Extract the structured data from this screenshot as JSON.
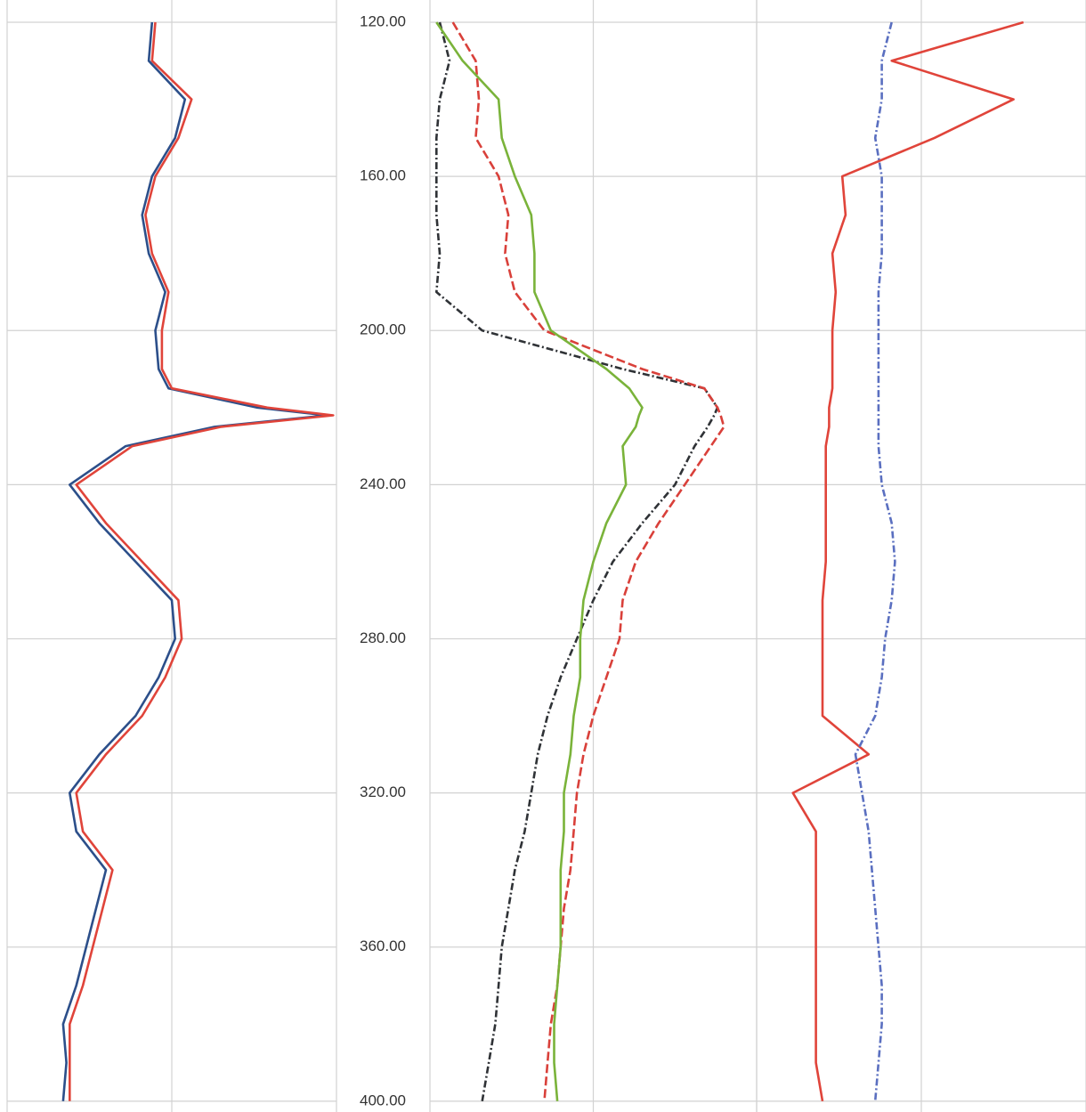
{
  "chart_data": {
    "type": "line",
    "y": [
      120,
      130,
      140,
      150,
      160,
      170,
      180,
      190,
      200,
      210,
      215,
      220,
      222,
      225,
      230,
      240,
      250,
      260,
      270,
      280,
      290,
      300,
      310,
      320,
      330,
      340,
      350,
      360,
      370,
      380,
      390,
      400
    ],
    "ylim": [
      116,
      402
    ],
    "yticks": [
      {
        "value": 120,
        "label": "120.00"
      },
      {
        "value": 160,
        "label": "160.00"
      },
      {
        "value": 200,
        "label": "200.00"
      },
      {
        "value": 240,
        "label": "240.00"
      },
      {
        "value": 280,
        "label": "280.00"
      },
      {
        "value": 320,
        "label": "320.00"
      },
      {
        "value": 360,
        "label": "360.00"
      },
      {
        "value": 400,
        "label": "400.00"
      }
    ],
    "grid": true,
    "tracks": [
      {
        "xlim": [
          0,
          100
        ],
        "xticks": [
          0,
          50,
          100
        ],
        "series": [
          {
            "color": "#2c4f8a",
            "style": "solid",
            "values": [
              44,
              43,
              54,
              51,
              44,
              41,
              43,
              48,
              45,
              46,
              49,
              76,
              97,
              63,
              36,
              19,
              28,
              39,
              50,
              51,
              46,
              39,
              28,
              19,
              21,
              30,
              27,
              24,
              21,
              17,
              18,
              17
            ]
          },
          {
            "color": "#e0443a",
            "style": "solid",
            "values": [
              45,
              44,
              56,
              52,
              45,
              42,
              44,
              49,
              47,
              47,
              50,
              79,
              99,
              65,
              38,
              21,
              30,
              41,
              52,
              53,
              48,
              41,
              30,
              21,
              23,
              32,
              29,
              26,
              23,
              19,
              19,
              19
            ]
          }
        ]
      },
      {
        "xlim": [
          0,
          100
        ],
        "xticks": [
          0,
          50,
          100
        ],
        "series": [
          {
            "color": "#2f3236",
            "style": "dash-dot",
            "values": [
              3,
              6,
              3,
              2,
              2,
              2,
              3,
              2,
              16,
              59,
              84,
              88,
              87,
              85,
              81,
              75,
              65,
              56,
              50,
              45,
              40,
              36,
              33,
              31,
              29,
              26,
              24,
              22,
              21,
              20,
              18,
              16
            ]
          },
          {
            "color": "#d9403a",
            "style": "dashed",
            "values": [
              7,
              14,
              15,
              14,
              21,
              24,
              23,
              26,
              35,
              65,
              84,
              88,
              89,
              90,
              86,
              78,
              70,
              63,
              59,
              58,
              54,
              50,
              47,
              45,
              44,
              43,
              41,
              40,
              39,
              37,
              36,
              35
            ]
          },
          {
            "color": "#7ab33a",
            "style": "solid",
            "values": [
              2,
              10,
              21,
              22,
              26,
              31,
              32,
              32,
              37,
              54,
              61,
              65,
              64,
              63,
              59,
              60,
              54,
              50,
              47,
              46,
              46,
              44,
              43,
              41,
              41,
              40,
              40,
              40,
              39,
              38,
              38,
              39
            ]
          }
        ]
      },
      {
        "xlim": [
          0,
          100
        ],
        "xticks": [
          0,
          50,
          100
        ],
        "series": [
          {
            "color": "#e0443a",
            "style": "solid",
            "values": [
              81,
              41,
              78,
              54,
              26,
              27,
              23,
              24,
              23,
              23,
              23,
              22,
              22,
              22,
              21,
              21,
              21,
              21,
              20,
              20,
              20,
              20,
              34,
              11,
              18,
              18,
              18,
              18,
              18,
              18,
              18,
              20
            ]
          },
          {
            "color": "#5a6fc0",
            "style": "dash-dot",
            "values": [
              41,
              38,
              38,
              36,
              38,
              38,
              38,
              37,
              37,
              37,
              37,
              37,
              37,
              37,
              37,
              38,
              41,
              42,
              41,
              39,
              38,
              36,
              30,
              32,
              34,
              35,
              36,
              37,
              38,
              38,
              37,
              36
            ]
          }
        ]
      }
    ]
  }
}
